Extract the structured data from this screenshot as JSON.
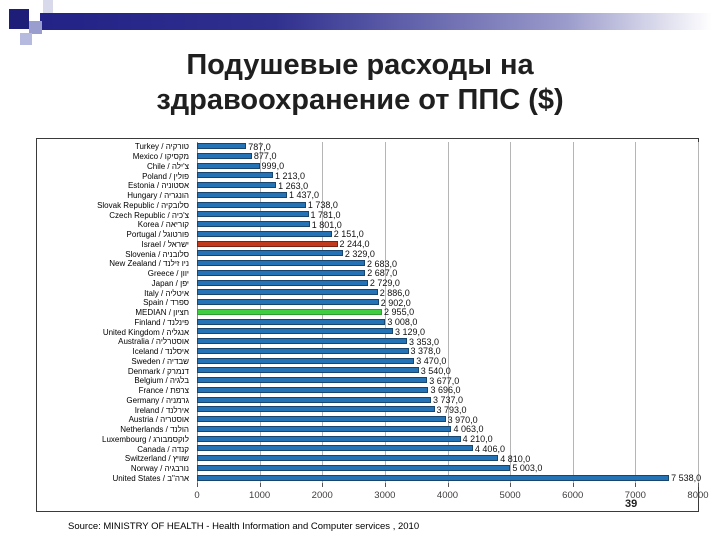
{
  "slide": {
    "title": "Подушевые расходы на здравоохранение от ППС ($)",
    "page_number": "39",
    "source": "Source: MINISTRY OF HEALTH - Health Information and Computer services , 2010"
  },
  "colors": {
    "bar_default": "#2373B6",
    "bar_default_border": "#17456E",
    "bar_israel": "#C03A1B",
    "bar_israel_border": "#7E2110",
    "bar_median": "#3FCE3F",
    "bar_median_border": "#2E9E2E",
    "gridline": "#B5B5B5",
    "accent_navy": "#1E1E78"
  },
  "chart_data": {
    "type": "bar",
    "orientation": "horizontal",
    "title": "Подушевые расходы на здравоохранение от ППС ($)",
    "xlabel": "",
    "ylabel": "",
    "xlim": [
      0,
      8000
    ],
    "xticks": [
      0,
      1000,
      2000,
      3000,
      4000,
      5000,
      6000,
      7000,
      8000
    ],
    "grid": true,
    "legend": "none",
    "categories": [
      "Turkey / טורקיה",
      "Mexico / מקסיקו",
      "Chile / צ'ילה",
      "Poland / פולין",
      "Estonia / אסטוניה",
      "Hungary / הונגריה",
      "Slovak Republic / סלובקיה",
      "Czech Republic / צ'כיה",
      "Korea / קוריאה",
      "Portugal / פורטוגל",
      "Israel / ישראל",
      "Slovenia / סלובניה",
      "New Zealand / ניו זילנד",
      "Greece / יוון",
      "Japan / יפן",
      "Italy / איטליה",
      "Spain / ספרד",
      "MEDIAN / חציון",
      "Finland / פינלנד",
      "United Kingdom / אנגליה",
      "Australia / אוסטרליה",
      "Iceland / איסלנד",
      "Sweden / שבדיה",
      "Denmark / דנמרק",
      "Belgium / בלגיה",
      "France / צרפת",
      "Germany / גרמניה",
      "Ireland / אירלנד",
      "Austria / אוסטריה",
      "Netherlands / הולנד",
      "Luxembourg / לוקסמבורג",
      "Canada / קנדה",
      "Switzerland / שוויץ",
      "Norway / נורבגיה",
      "United States / ארה\"ב"
    ],
    "values": [
      787,
      877,
      999,
      1213,
      1263,
      1437,
      1738,
      1781,
      1801,
      2151,
      2244,
      2329,
      2683,
      2687,
      2729,
      2886,
      2902,
      2955,
      3008,
      3129,
      3353,
      3378,
      3470,
      3540,
      3677,
      3696,
      3737,
      3793,
      3970,
      4063,
      4210,
      4406,
      4810,
      5003,
      7538
    ],
    "value_labels": [
      "787,0",
      "877,0",
      "999,0",
      "1 213,0",
      "1 263,0",
      "1 437,0",
      "1 738,0",
      "1 781,0",
      "1 801,0",
      "2 151,0",
      "2 244,0",
      "2 329,0",
      "2 683,0",
      "2 687,0",
      "2 729,0",
      "2 886,0",
      "2 902,0",
      "2 955,0",
      "3 008,0",
      "3 129,0",
      "3 353,0",
      "3 378,0",
      "3 470,0",
      "3 540,0",
      "3 677,0",
      "3 696,0",
      "3 737,0",
      "3 793,0",
      "3 970,0",
      "4 063,0",
      "4 210,0",
      "4 406,0",
      "4 810,0",
      "5 003,0",
      "7 538,0"
    ],
    "special": {
      "10": "israel",
      "17": "median"
    }
  }
}
